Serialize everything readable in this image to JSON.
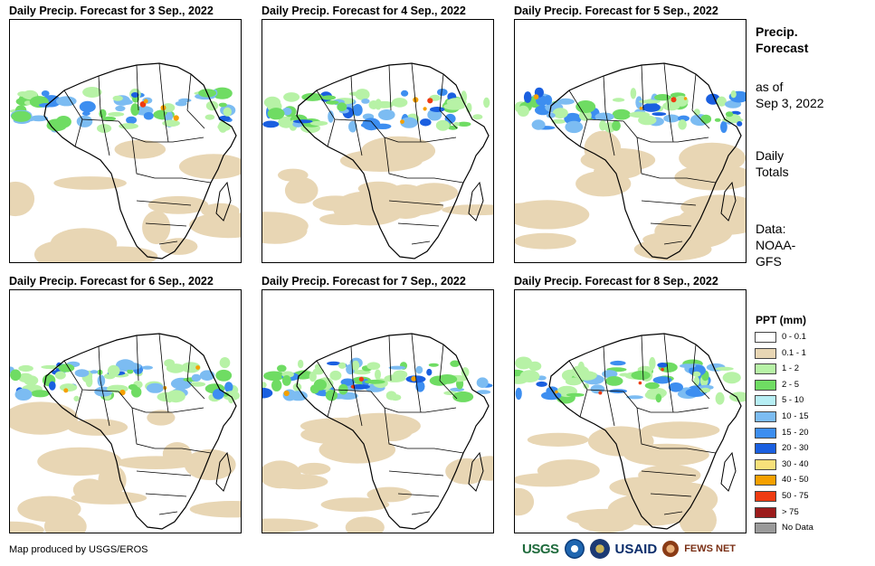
{
  "panels": [
    {
      "title": "Daily Precip. Forecast for 3 Sep., 2022"
    },
    {
      "title": "Daily Precip. Forecast for 4 Sep., 2022"
    },
    {
      "title": "Daily Precip. Forecast for 5 Sep., 2022"
    },
    {
      "title": "Daily Precip. Forecast for 6 Sep., 2022"
    },
    {
      "title": "Daily Precip. Forecast for 7 Sep., 2022"
    },
    {
      "title": "Daily Precip. Forecast for 8 Sep., 2022"
    }
  ],
  "side": {
    "title_line1": "Precip.",
    "title_line2": "Forecast",
    "asof_line1": "as of",
    "asof_line2": "Sep 3, 2022",
    "totals_line1": "Daily",
    "totals_line2": "Totals",
    "data_line1": "Data:",
    "data_line2": "NOAA-",
    "data_line3": "GFS"
  },
  "legend": {
    "title": "PPT (mm)",
    "items": [
      {
        "label": "0 - 0.1",
        "color": "#ffffff"
      },
      {
        "label": "0.1 - 1",
        "color": "#e8d6b4"
      },
      {
        "label": "1 - 2",
        "color": "#b7f2a6"
      },
      {
        "label": "2 - 5",
        "color": "#6fdc63"
      },
      {
        "label": "5 - 10",
        "color": "#b6eef4"
      },
      {
        "label": "10 - 15",
        "color": "#7cbcf2"
      },
      {
        "label": "15 - 20",
        "color": "#3d8ef0"
      },
      {
        "label": "20 - 30",
        "color": "#1a5fe0"
      },
      {
        "label": "30 - 40",
        "color": "#f7e07a"
      },
      {
        "label": "40 - 50",
        "color": "#f5a000"
      },
      {
        "label": "50 - 75",
        "color": "#ef3b12"
      },
      {
        "label": "> 75",
        "color": "#9c1c1c"
      },
      {
        "label": "No Data",
        "color": "#9a9a9a"
      }
    ]
  },
  "footer": {
    "credit": "Map produced by USGS/EROS",
    "logos": [
      "USGS",
      "NOAA",
      "DOS",
      "USAID",
      "FEWS NET"
    ]
  }
}
